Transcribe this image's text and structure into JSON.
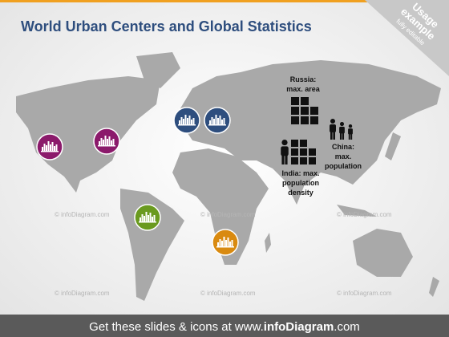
{
  "header": {
    "title": "World Urban Centers and Global Statistics"
  },
  "badge": {
    "line1": "Usage",
    "line2": "example",
    "line3": "fully editable"
  },
  "labels": {
    "russia": [
      "Russia:",
      "max. area"
    ],
    "china": [
      "China:",
      "max.",
      "population"
    ],
    "india": [
      "India: max.",
      "population",
      "density"
    ]
  },
  "watermark": "© infoDiagram.com",
  "footer": {
    "lead": "Get these slides & icons at www.",
    "brand": "infoDiagram",
    "tail": ".com"
  }
}
